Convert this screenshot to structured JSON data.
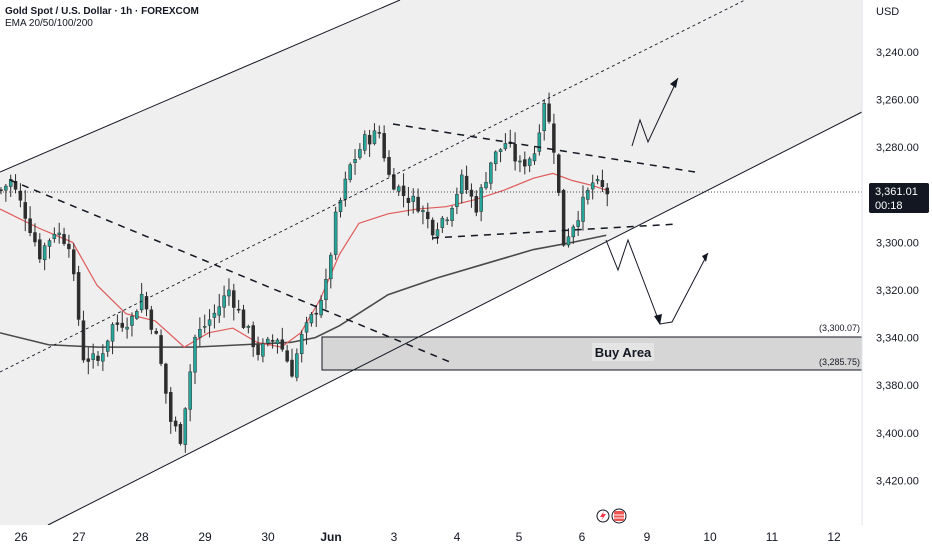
{
  "header": {
    "title": "Gold Spot / U.S. Dollar · 1h · FOREXCOM",
    "indicator": "EMA 20/50/100/200"
  },
  "price_axis": {
    "currency": "USD",
    "ticks": [
      "3,420.00",
      "3,400.00",
      "3,380.00",
      "3,340.00",
      "3,320.00",
      "3,300.00",
      "3,280.00",
      "3,260.00",
      "3,240.00"
    ]
  },
  "current_price": {
    "value": "3,361.01",
    "countdown": "00:18"
  },
  "time_axis": {
    "labels": [
      "26",
      "27",
      "28",
      "29",
      "30",
      "Jun",
      "3",
      "4",
      "5",
      "6",
      "9",
      "10",
      "11",
      "12"
    ]
  },
  "buy_area": {
    "label": "Buy Area",
    "upper_label": "(3,300.07)",
    "lower_label": "(3,285.75)"
  },
  "colors": {
    "bull": "#26a69a",
    "bear": "#ef5350",
    "candle_body": "#2d2d2d",
    "ema_red": "#e05a5a",
    "ema_dark": "#4a4a4a",
    "price_tag": "#131722",
    "channel_fill": "#efefef",
    "buy_zone_fill": "#d6d6d6"
  },
  "chart_data": {
    "type": "candlestick",
    "title": "Gold Spot / U.S. Dollar · 1h · FOREXCOM",
    "ylabel": "USD",
    "ylim": [
      3230,
      3435
    ],
    "x_labels": [
      "26",
      "27",
      "28",
      "29",
      "30",
      "Jun",
      "3",
      "4",
      "5",
      "6",
      "9",
      "10",
      "11",
      "12"
    ],
    "y_ticks": [
      3240,
      3260,
      3280,
      3300,
      3320,
      3340,
      3380,
      3400,
      3420
    ],
    "last_price": 3361.01,
    "close_path": [
      [
        0,
        3362
      ],
      [
        2,
        3366
      ],
      [
        5,
        3352
      ],
      [
        8,
        3335
      ],
      [
        11,
        3345
      ],
      [
        14,
        3340
      ],
      [
        17,
        3292
      ],
      [
        20,
        3290
      ],
      [
        23,
        3305
      ],
      [
        27,
        3308
      ],
      [
        29,
        3318
      ],
      [
        32,
        3300
      ],
      [
        35,
        3265
      ],
      [
        37,
        3258
      ],
      [
        40,
        3300
      ],
      [
        44,
        3310
      ],
      [
        47,
        3320
      ],
      [
        50,
        3306
      ],
      [
        53,
        3294
      ],
      [
        57,
        3300
      ],
      [
        60,
        3286
      ],
      [
        62,
        3300
      ],
      [
        65,
        3312
      ],
      [
        67,
        3322
      ],
      [
        69,
        3350
      ],
      [
        72,
        3372
      ],
      [
        75,
        3383
      ],
      [
        78,
        3386
      ],
      [
        80,
        3368
      ],
      [
        83,
        3360
      ],
      [
        86,
        3356
      ],
      [
        89,
        3346
      ],
      [
        92,
        3352
      ],
      [
        95,
        3366
      ],
      [
        98,
        3355
      ],
      [
        101,
        3374
      ],
      [
        104,
        3382
      ],
      [
        107,
        3372
      ],
      [
        110,
        3378
      ],
      [
        112,
        3400
      ],
      [
        114,
        3380
      ],
      [
        116,
        3340
      ],
      [
        119,
        3352
      ],
      [
        122,
        3365
      ],
      [
        125,
        3361
      ]
    ],
    "ema_fast": [
      [
        0,
        3354
      ],
      [
        8,
        3346
      ],
      [
        15,
        3340
      ],
      [
        20,
        3322
      ],
      [
        26,
        3310
      ],
      [
        32,
        3307
      ],
      [
        38,
        3296
      ],
      [
        43,
        3302
      ],
      [
        48,
        3304
      ],
      [
        53,
        3298
      ],
      [
        58,
        3296
      ],
      [
        62,
        3302
      ],
      [
        66,
        3316
      ],
      [
        70,
        3335
      ],
      [
        74,
        3348
      ],
      [
        80,
        3352
      ],
      [
        86,
        3354
      ],
      [
        92,
        3355
      ],
      [
        98,
        3358
      ],
      [
        104,
        3362
      ],
      [
        110,
        3367
      ],
      [
        114,
        3369
      ],
      [
        118,
        3366
      ],
      [
        122,
        3364
      ],
      [
        125,
        3362
      ]
    ],
    "ema_slow": [
      [
        0,
        3302
      ],
      [
        10,
        3297
      ],
      [
        20,
        3296
      ],
      [
        30,
        3296
      ],
      [
        40,
        3296
      ],
      [
        50,
        3297
      ],
      [
        60,
        3298
      ],
      [
        65,
        3300
      ],
      [
        70,
        3305
      ],
      [
        80,
        3318
      ],
      [
        90,
        3325
      ],
      [
        100,
        3331
      ],
      [
        110,
        3337
      ],
      [
        118,
        3340
      ],
      [
        125,
        3343
      ]
    ],
    "buy_area": {
      "upper": 3300.07,
      "lower": 3285.75,
      "label": "Buy Area"
    },
    "annotations": [
      "ascending channel",
      "descending trendline",
      "symmetrical triangle",
      "projected bullish path",
      "projected bearish path"
    ]
  }
}
